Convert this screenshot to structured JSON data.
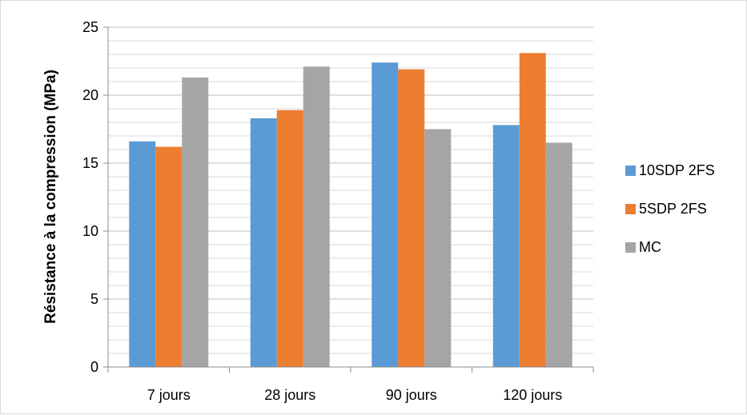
{
  "chart_data": {
    "type": "bar",
    "title": "",
    "xlabel": "",
    "ylabel": "Résistance à la compression (MPa)",
    "categories": [
      "7 jours",
      "28 jours",
      "90 jours",
      "120 jours"
    ],
    "series": [
      {
        "name": "10SDP 2FS",
        "color": "#5b9bd5",
        "values": [
          16.6,
          18.3,
          22.4,
          17.8
        ]
      },
      {
        "name": "5SDP 2FS",
        "color": "#ed7d31",
        "values": [
          16.2,
          18.9,
          21.9,
          23.1
        ]
      },
      {
        "name": "MC",
        "color": "#a5a5a5",
        "values": [
          21.3,
          22.1,
          17.5,
          16.5
        ]
      }
    ],
    "ylim": [
      0,
      25
    ],
    "yticks": [
      0,
      5,
      10,
      15,
      20,
      25
    ],
    "minor_gridlines": true,
    "legend_position": "right"
  }
}
